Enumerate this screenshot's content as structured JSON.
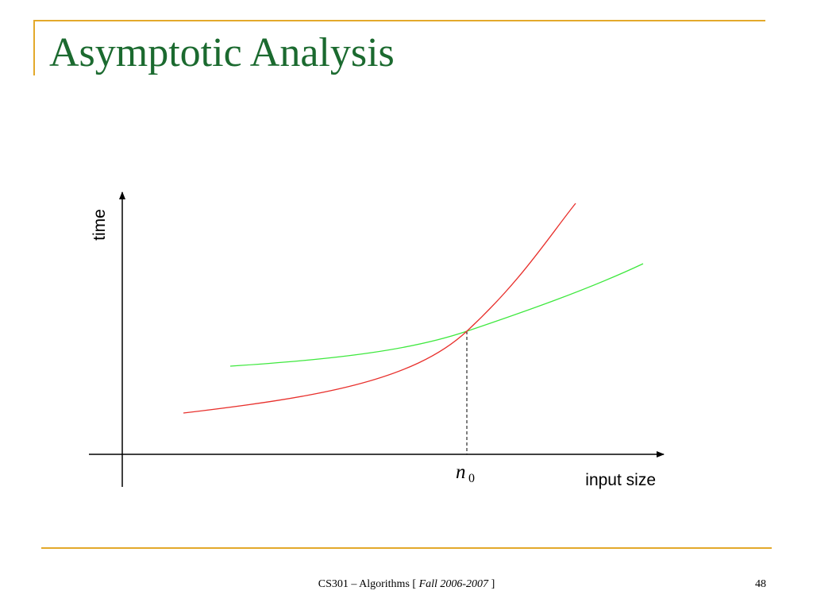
{
  "slide": {
    "title": "Asymptotic Analysis",
    "footer": {
      "course": "CS301 – Algorithms [",
      "term": "Fall 2006-2007",
      "close": " ]"
    },
    "page_number": "48"
  },
  "colors": {
    "title": "#1b6a2f",
    "rules": "#e3a92b",
    "red_curve": "#e8302c",
    "green_curve": "#3ee83e"
  },
  "chart_data": {
    "type": "line",
    "xlabel": "input size",
    "ylabel": "time",
    "marker": {
      "label": "n",
      "subscript": "0"
    },
    "axis_ticks": false,
    "grid": false,
    "series": [
      {
        "color": "red",
        "shape": "exponential growth, starts lower, overtakes after n0"
      },
      {
        "color": "green",
        "shape": "slower growth, starts higher"
      }
    ]
  }
}
